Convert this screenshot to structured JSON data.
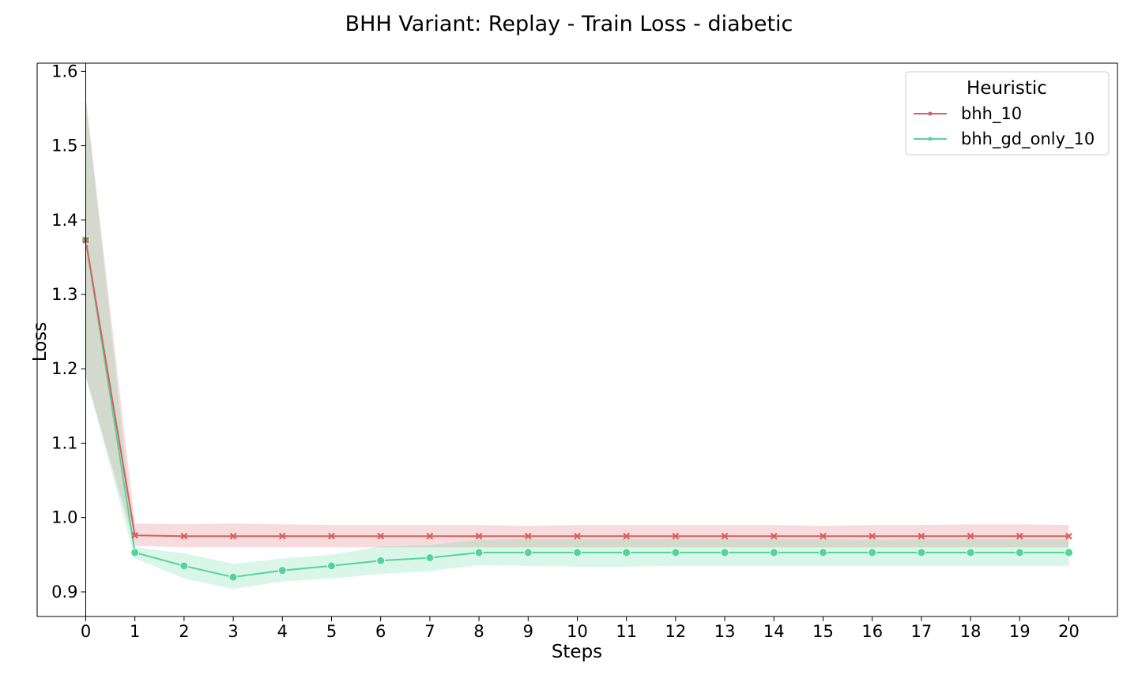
{
  "chart_data": {
    "type": "line",
    "title": "BHH Variant: Replay - Train Loss - diabetic",
    "xlabel": "Steps",
    "ylabel": "Loss",
    "x": [
      0,
      1,
      2,
      3,
      4,
      5,
      6,
      7,
      8,
      9,
      10,
      11,
      12,
      13,
      14,
      15,
      16,
      17,
      18,
      19,
      20
    ],
    "xlim": [
      0,
      20
    ],
    "ylim": [
      0.867,
      1.611
    ],
    "yticks": [
      "0.9",
      "1.0",
      "1.1",
      "1.2",
      "1.3",
      "1.4",
      "1.5",
      "1.6"
    ],
    "grid": false,
    "legend": {
      "title": "Heuristic",
      "position": "top-right"
    },
    "series": [
      {
        "name": "bhh_10",
        "color": "#d65f5f",
        "marker": "x",
        "values": [
          1.373,
          0.976,
          0.975,
          0.975,
          0.975,
          0.975,
          0.975,
          0.975,
          0.975,
          0.975,
          0.975,
          0.975,
          0.975,
          0.975,
          0.975,
          0.975,
          0.975,
          0.975,
          0.975,
          0.975,
          0.975
        ],
        "upper": [
          1.565,
          0.992,
          0.991,
          0.992,
          0.991,
          0.99,
          0.99,
          0.99,
          0.99,
          0.989,
          0.99,
          0.99,
          0.99,
          0.99,
          0.99,
          0.989,
          0.99,
          0.99,
          0.991,
          0.991,
          0.99
        ],
        "lower": [
          1.19,
          0.962,
          0.96,
          0.96,
          0.96,
          0.96,
          0.96,
          0.96,
          0.96,
          0.96,
          0.96,
          0.96,
          0.96,
          0.96,
          0.96,
          0.96,
          0.96,
          0.96,
          0.96,
          0.96,
          0.96
        ]
      },
      {
        "name": "bhh_gd_only_10",
        "color": "#55d49a",
        "marker": "o",
        "values": [
          1.373,
          0.953,
          0.935,
          0.92,
          0.929,
          0.935,
          0.942,
          0.946,
          0.953,
          0.953,
          0.953,
          0.953,
          0.953,
          0.953,
          0.953,
          0.953,
          0.953,
          0.953,
          0.953,
          0.953,
          0.953
        ],
        "upper": [
          1.565,
          0.96,
          0.952,
          0.938,
          0.945,
          0.95,
          0.961,
          0.963,
          0.97,
          0.971,
          0.971,
          0.971,
          0.971,
          0.971,
          0.971,
          0.971,
          0.97,
          0.971,
          0.971,
          0.971,
          0.971
        ],
        "lower": [
          1.19,
          0.945,
          0.918,
          0.904,
          0.914,
          0.918,
          0.924,
          0.928,
          0.936,
          0.935,
          0.934,
          0.934,
          0.935,
          0.935,
          0.935,
          0.935,
          0.935,
          0.935,
          0.935,
          0.935,
          0.935
        ]
      }
    ]
  }
}
